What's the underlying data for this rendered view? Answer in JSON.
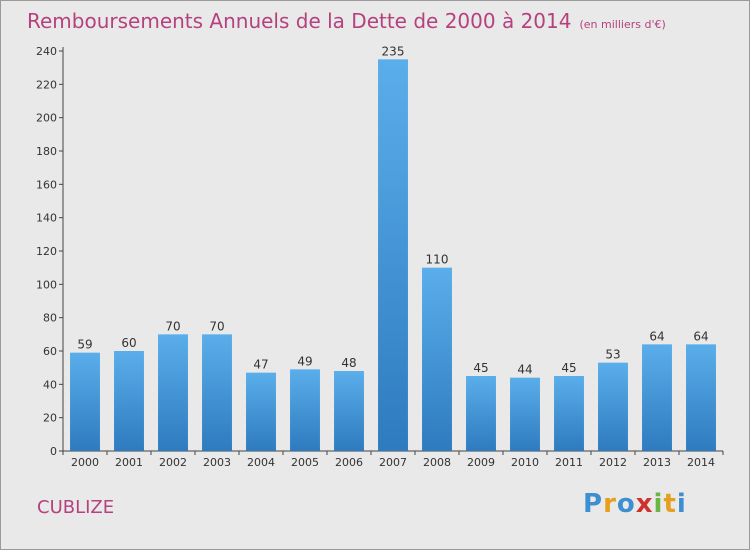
{
  "header": {
    "title": "Remboursements Annuels de la Dette de 2000 à 2014",
    "subtitle": "(en milliers d'€)"
  },
  "place": "CUBLIZE",
  "logo": {
    "text": "Proxiti",
    "letters": [
      "P",
      "r",
      "o",
      "x",
      "i",
      "t",
      "i"
    ]
  },
  "colors": {
    "title": "#b5417f",
    "bar_top": "#5aaeea",
    "bar_bottom": "#2e7bbf",
    "background": "#e9e9e9"
  },
  "chart_data": {
    "type": "bar",
    "categories": [
      "2000",
      "2001",
      "2002",
      "2003",
      "2004",
      "2005",
      "2006",
      "2007",
      "2008",
      "2009",
      "2010",
      "2011",
      "2012",
      "2013",
      "2014"
    ],
    "values": [
      59,
      60,
      70,
      70,
      47,
      49,
      48,
      235,
      110,
      45,
      44,
      45,
      53,
      64,
      64
    ],
    "title": "Remboursements Annuels de la Dette de 2000 à 2014",
    "ylim": [
      0,
      240
    ],
    "yticks": [
      0,
      20,
      40,
      60,
      80,
      100,
      120,
      140,
      160,
      180,
      200,
      220,
      240
    ],
    "grid": false,
    "data_labels": true
  }
}
